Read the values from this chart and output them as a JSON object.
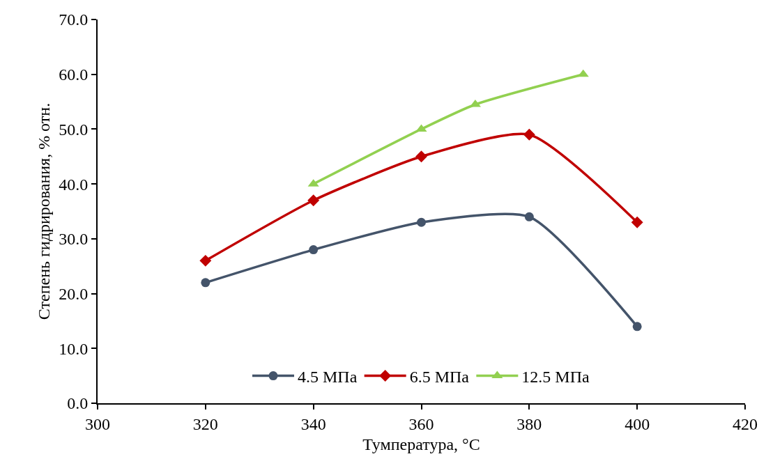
{
  "chart_data": {
    "type": "line",
    "xlabel": "Тумпература, °C",
    "ylabel": "Степень гидрирования, % отн.",
    "xlim": [
      300,
      420
    ],
    "xticks": [
      300,
      320,
      340,
      360,
      380,
      400,
      420
    ],
    "ylim": [
      0,
      70
    ],
    "yticks": [
      {
        "value": 0,
        "label": "0.0"
      },
      {
        "value": 10,
        "label": "10.0"
      },
      {
        "value": 20,
        "label": "20.0"
      },
      {
        "value": 30,
        "label": "30.0"
      },
      {
        "value": 40,
        "label": "40.0"
      },
      {
        "value": 50,
        "label": "50.0"
      },
      {
        "value": 60,
        "label": "60.0"
      },
      {
        "value": 70,
        "label": "70.0"
      }
    ],
    "grid": false,
    "legend": "bottom",
    "series": [
      {
        "name": "4.5 МПа",
        "color": "#44546a",
        "marker": "circle",
        "x": [
          320,
          340,
          360,
          380,
          400
        ],
        "values": [
          22,
          28,
          33,
          34,
          14
        ]
      },
      {
        "name": "6.5 МПа",
        "color": "#c00000",
        "marker": "diamond",
        "x": [
          320,
          340,
          360,
          380,
          400
        ],
        "values": [
          26,
          37,
          45,
          49,
          33
        ]
      },
      {
        "name": "12.5 МПа",
        "color": "#92d050",
        "marker": "triangle",
        "x": [
          340,
          360,
          370,
          390
        ],
        "values": [
          40,
          50,
          54.5,
          60
        ]
      }
    ]
  }
}
